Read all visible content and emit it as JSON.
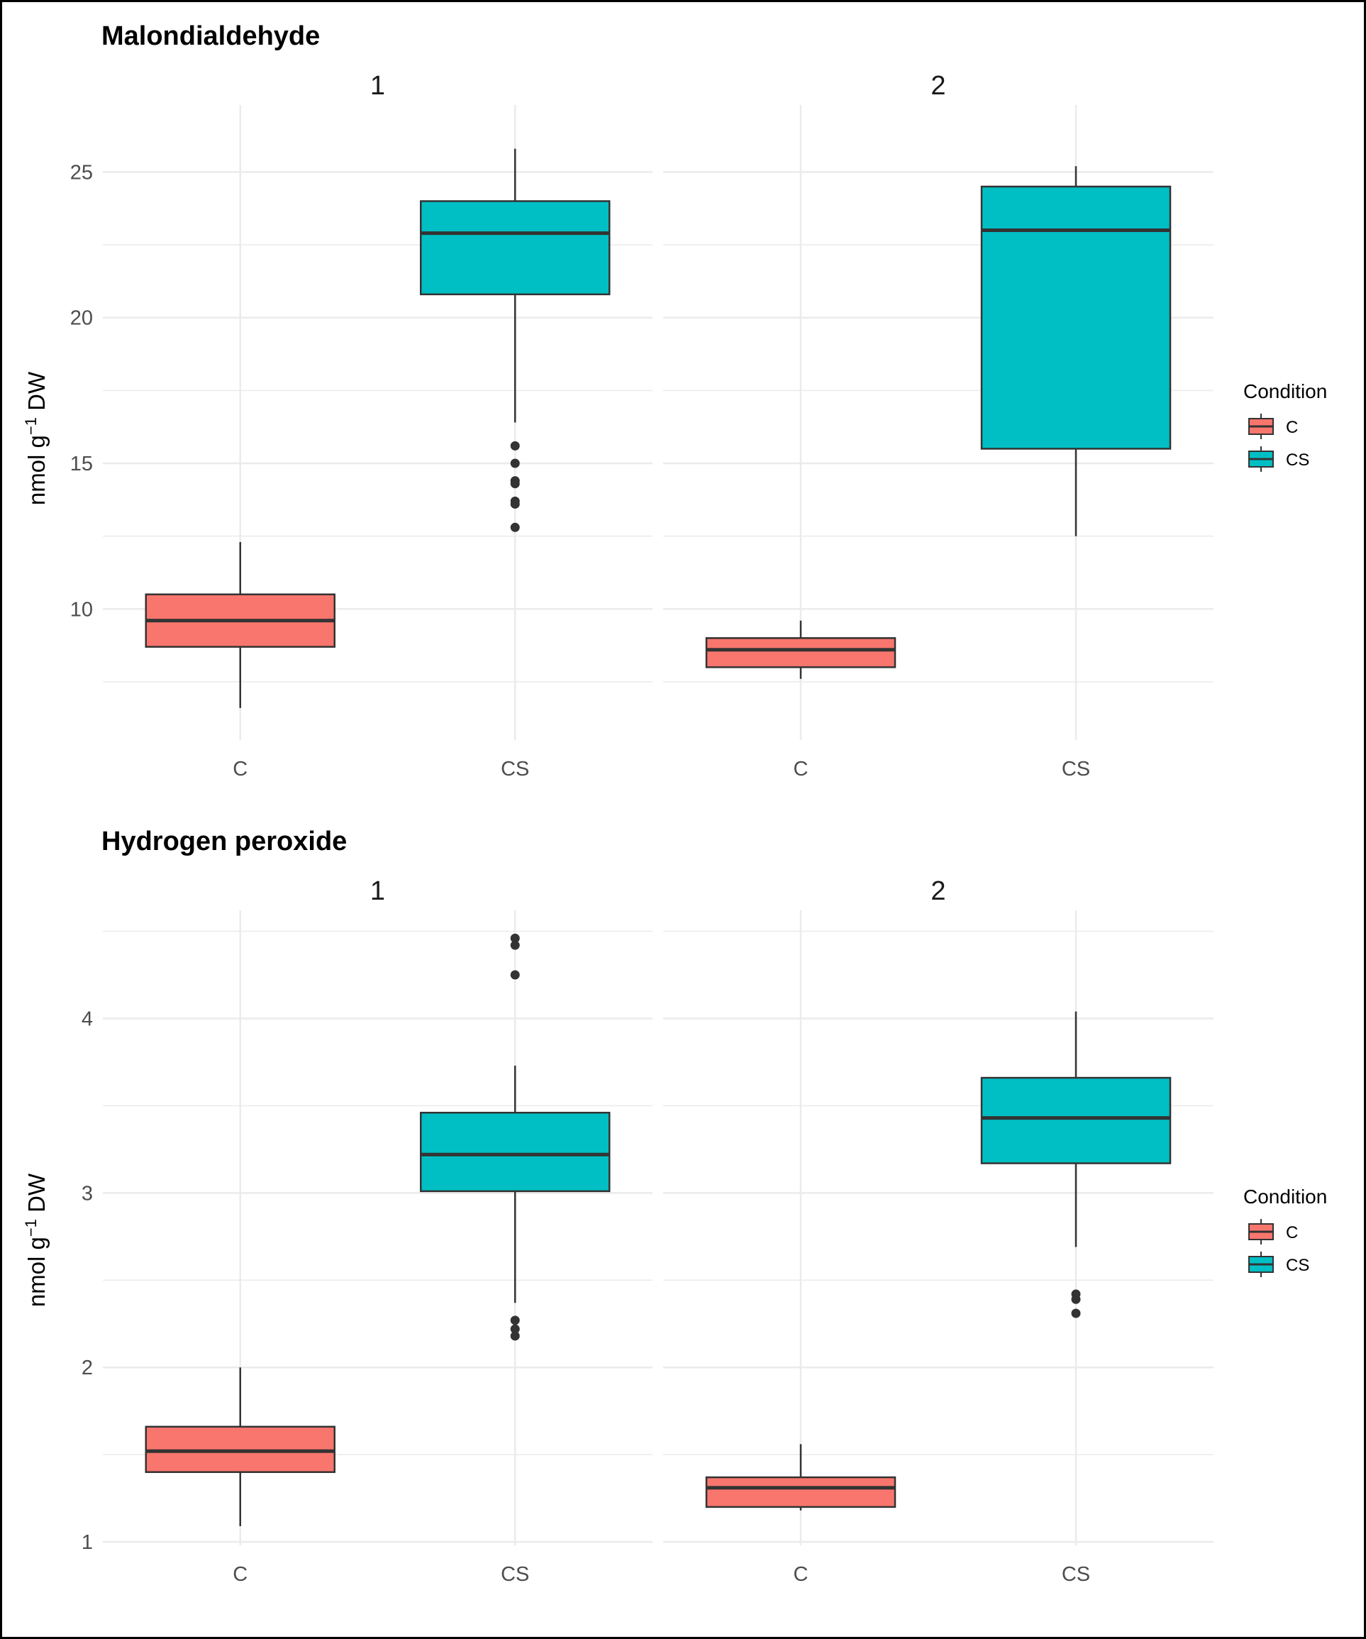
{
  "chart_data": [
    {
      "type": "boxplot",
      "title": "Malondialdehyde",
      "ylabel": "nmol g-1 DW",
      "ylabel_parts": {
        "prefix": "nmol g",
        "superscript": "−1",
        "suffix": " DW"
      },
      "ylim": [
        5.5,
        27.3
      ],
      "yticks": [
        10,
        15,
        20,
        25
      ],
      "ytick_labels": [
        "10",
        "15",
        "20",
        "25"
      ],
      "facets": [
        {
          "label": "1",
          "categories": [
            "C",
            "CS"
          ],
          "boxes": [
            {
              "category": "C",
              "condition": "C",
              "whisker_low": 6.6,
              "q1": 8.7,
              "median": 9.6,
              "q3": 10.5,
              "whisker_high": 12.3,
              "outliers": []
            },
            {
              "category": "CS",
              "condition": "CS",
              "whisker_low": 16.4,
              "q1": 20.8,
              "median": 22.9,
              "q3": 24.0,
              "whisker_high": 25.8,
              "outliers": [
                15.6,
                15.0,
                14.4,
                14.3,
                13.7,
                13.6,
                12.8
              ]
            }
          ]
        },
        {
          "label": "2",
          "categories": [
            "C",
            "CS"
          ],
          "boxes": [
            {
              "category": "C",
              "condition": "C",
              "whisker_low": 7.6,
              "q1": 8.0,
              "median": 8.6,
              "q3": 9.0,
              "whisker_high": 9.6,
              "outliers": []
            },
            {
              "category": "CS",
              "condition": "CS",
              "whisker_low": 12.5,
              "q1": 15.5,
              "median": 23.0,
              "q3": 24.5,
              "whisker_high": 25.2,
              "outliers": []
            }
          ]
        }
      ],
      "legend": {
        "title": "Condition",
        "entries": [
          {
            "label": "C",
            "color": "#F8766D"
          },
          {
            "label": "CS",
            "color": "#00BFC4"
          }
        ],
        "position": "right"
      }
    },
    {
      "type": "boxplot",
      "title": "Hydrogen peroxide",
      "ylabel": "nmol g-1 DW",
      "ylabel_parts": {
        "prefix": "nmol g",
        "superscript": "−1",
        "suffix": " DW"
      },
      "ylim": [
        0.98,
        4.62
      ],
      "yticks": [
        1,
        2,
        3,
        4
      ],
      "ytick_labels": [
        "1",
        "2",
        "3",
        "4"
      ],
      "facets": [
        {
          "label": "1",
          "categories": [
            "C",
            "CS"
          ],
          "boxes": [
            {
              "category": "C",
              "condition": "C",
              "whisker_low": 1.09,
              "q1": 1.4,
              "median": 1.52,
              "q3": 1.66,
              "whisker_high": 2.0,
              "outliers": []
            },
            {
              "category": "CS",
              "condition": "CS",
              "whisker_low": 2.37,
              "q1": 3.01,
              "median": 3.22,
              "q3": 3.46,
              "whisker_high": 3.73,
              "outliers": [
                4.46,
                4.42,
                4.25,
                2.27,
                2.22,
                2.18
              ]
            }
          ]
        },
        {
          "label": "2",
          "categories": [
            "C",
            "CS"
          ],
          "boxes": [
            {
              "category": "C",
              "condition": "C",
              "whisker_low": 1.18,
              "q1": 1.2,
              "median": 1.31,
              "q3": 1.37,
              "whisker_high": 1.56,
              "outliers": []
            },
            {
              "category": "CS",
              "condition": "CS",
              "whisker_low": 2.69,
              "q1": 3.17,
              "median": 3.43,
              "q3": 3.66,
              "whisker_high": 4.04,
              "outliers": [
                2.42,
                2.39,
                2.31
              ]
            }
          ]
        }
      ],
      "legend": {
        "title": "Condition",
        "entries": [
          {
            "label": "C",
            "color": "#F8766D"
          },
          {
            "label": "CS",
            "color": "#00BFC4"
          }
        ],
        "position": "right"
      }
    }
  ],
  "colors": {
    "C": "#F8766D",
    "CS": "#00BFC4",
    "box_line": "#333333",
    "grid": "#EBEBEB"
  }
}
